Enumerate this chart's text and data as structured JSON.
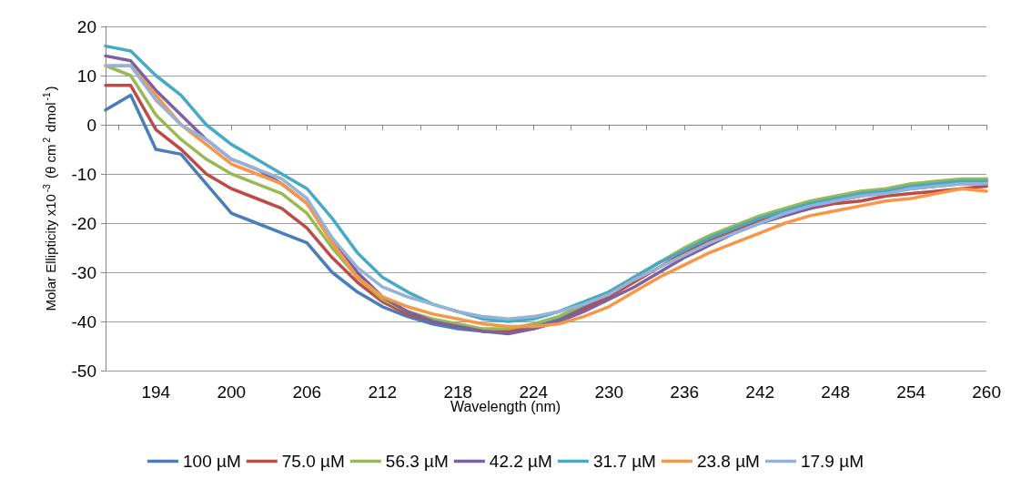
{
  "chart_data": {
    "type": "line",
    "xlabel": "Wavelength (nm)",
    "ylabel": "Molar Ellipticity x10$^{-3}$ (θ cm$^{2}$ dmol$^{-1}$)",
    "x": [
      190,
      192,
      194,
      196,
      198,
      200,
      202,
      204,
      206,
      208,
      210,
      212,
      214,
      216,
      218,
      220,
      222,
      224,
      226,
      228,
      230,
      232,
      234,
      236,
      238,
      240,
      242,
      244,
      246,
      248,
      250,
      252,
      254,
      256,
      258,
      260
    ],
    "xlim": [
      190,
      260
    ],
    "xticks": [
      {
        "value": 191,
        "label": null
      },
      194,
      {
        "value": 197,
        "label": null
      },
      200,
      {
        "value": 203,
        "label": null
      },
      206,
      {
        "value": 209,
        "label": null
      },
      212,
      {
        "value": 215,
        "label": null
      },
      218,
      {
        "value": 221,
        "label": null
      },
      224,
      {
        "value": 227,
        "label": null
      },
      230,
      {
        "value": 233,
        "label": null
      },
      236,
      {
        "value": 239,
        "label": null
      },
      242,
      {
        "value": 245,
        "label": null
      },
      248,
      {
        "value": 251,
        "label": null
      },
      254,
      {
        "value": 257,
        "label": null
      },
      260
    ],
    "ylim": [
      -50,
      20
    ],
    "yticks": [
      -50,
      -40,
      -30,
      -20,
      -10,
      0,
      10,
      20
    ],
    "grid": "y",
    "legend": "bottom",
    "marker": "none",
    "line_style": "solid",
    "series": [
      {
        "name": "100 µM",
        "color": "#4a7ebb",
        "values": [
          3,
          6,
          -5,
          -6,
          -12,
          -18,
          -20,
          -22,
          -24,
          -30,
          -34,
          -37,
          -39,
          -40.5,
          -41.5,
          -42,
          -42,
          -41,
          -39.5,
          -37,
          -34.5,
          -31,
          -28,
          -25.5,
          -23,
          -21,
          -19,
          -17.5,
          -16,
          -15,
          -14,
          -13.5,
          -12.5,
          -12,
          -11.5,
          -11
        ]
      },
      {
        "name": "75.0 µM",
        "color": "#be4b48",
        "values": [
          8,
          8,
          -1,
          -5,
          -10,
          -13,
          -15,
          -17,
          -21,
          -27,
          -32,
          -36,
          -38.5,
          -40,
          -41,
          -42,
          -42,
          -41.5,
          -40,
          -37.5,
          -35,
          -32,
          -29,
          -26,
          -23.5,
          -21.5,
          -19.5,
          -18,
          -17,
          -16,
          -15.5,
          -14.5,
          -14,
          -13.5,
          -13,
          -12.5
        ]
      },
      {
        "name": "56.3 µM",
        "color": "#98b954",
        "values": [
          12,
          10,
          2,
          -3,
          -7,
          -10,
          -12,
          -14,
          -18,
          -25,
          -31,
          -35.5,
          -38,
          -39.5,
          -40.5,
          -41.5,
          -41.5,
          -40.5,
          -39,
          -36.5,
          -34,
          -31,
          -28,
          -25,
          -22.5,
          -20.5,
          -18.5,
          -17,
          -15.5,
          -14.5,
          -13.5,
          -13,
          -12,
          -11.5,
          -11,
          -11
        ]
      },
      {
        "name": "42.2 µM",
        "color": "#7d60a0",
        "values": [
          14,
          13,
          7,
          2,
          -3,
          -7,
          -9,
          -12,
          -16,
          -23,
          -30,
          -35,
          -38,
          -40,
          -41,
          -42,
          -42.5,
          -41.5,
          -40,
          -38,
          -35.5,
          -33,
          -30,
          -27,
          -24.5,
          -22,
          -20,
          -18.5,
          -17,
          -15.5,
          -14.5,
          -13.5,
          -13,
          -12.5,
          -12,
          -12
        ]
      },
      {
        "name": "31.7 µM",
        "color": "#46aac5",
        "values": [
          16,
          15,
          10,
          6,
          0,
          -4,
          -7,
          -10,
          -13,
          -19,
          -26,
          -31,
          -34,
          -36.5,
          -38,
          -39.5,
          -40,
          -39.5,
          -38,
          -36,
          -34,
          -31,
          -28,
          -25.5,
          -23,
          -21,
          -19,
          -17.5,
          -16,
          -15,
          -14,
          -13.5,
          -12.5,
          -12,
          -11.5,
          -11.5
        ]
      },
      {
        "name": "23.8 µM",
        "color": "#f79646",
        "values": [
          12,
          12,
          6,
          0,
          -4,
          -8,
          -10,
          -12,
          -16,
          -24,
          -31,
          -35,
          -37,
          -38.5,
          -39.5,
          -40.5,
          -41,
          -41,
          -40.5,
          -39,
          -37,
          -34,
          -31,
          -28.5,
          -26,
          -24,
          -22,
          -20,
          -18.5,
          -17.5,
          -16.5,
          -15.5,
          -15,
          -14,
          -13,
          -13.5
        ]
      },
      {
        "name": "17.9 µM",
        "color": "#95b3d7",
        "values": [
          12,
          12,
          5,
          0,
          -3,
          -7,
          -9,
          -11,
          -15,
          -23,
          -29,
          -33,
          -35,
          -36.5,
          -38,
          -39,
          -39.5,
          -39,
          -38,
          -36.5,
          -34.5,
          -31.5,
          -29,
          -26.5,
          -24,
          -22,
          -20,
          -18,
          -16.5,
          -15.5,
          -14.5,
          -14,
          -13,
          -12.5,
          -12,
          -12
        ]
      }
    ]
  }
}
